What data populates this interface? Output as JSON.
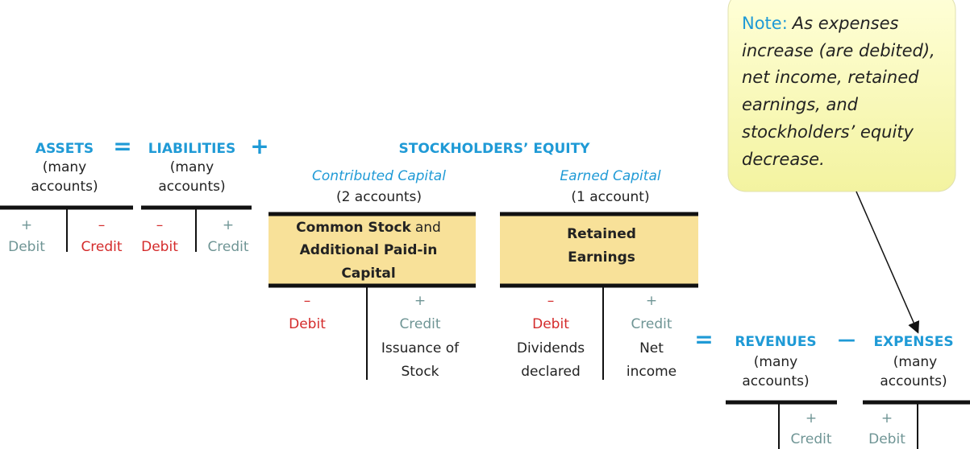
{
  "equation": {
    "assets": {
      "title": "ASSETS",
      "sub": [
        "(many",
        "accounts)"
      ]
    },
    "equals": "=",
    "liabilities": {
      "title": "LIABILITIES",
      "sub": [
        "(many",
        "accounts)"
      ]
    },
    "plus": "+",
    "equity": {
      "title": "STOCKHOLDERS’ EQUITY",
      "contributed": {
        "title": "Contributed Capital",
        "count": "(2 accounts)"
      },
      "earned": {
        "title": "Earned Capital",
        "count": "(1 account)"
      }
    }
  },
  "t_accounts": {
    "assets": {
      "left_sign": "+",
      "left": "Debit",
      "right_sign": "–",
      "right": "Credit"
    },
    "liabilities": {
      "left_sign": "–",
      "left": "Debit",
      "right_sign": "+",
      "right": "Credit"
    },
    "common_stock": {
      "name": [
        "Common Stock",
        "and",
        "Additional Paid-in",
        "Capital"
      ],
      "left_sign": "–",
      "left": "Debit",
      "right_sign": "+",
      "right": "Credit",
      "right_note": [
        "Issuance of",
        "Stock"
      ]
    },
    "retained_earnings": {
      "name": [
        "Retained",
        "Earnings"
      ],
      "left_sign": "–",
      "left": "Debit",
      "left_note": [
        "Dividends",
        "declared"
      ],
      "right_sign": "+",
      "right": "Credit",
      "right_note": [
        "Net",
        "income"
      ]
    },
    "revenues": {
      "right_sign": "+",
      "right": "Credit"
    },
    "expenses": {
      "left_sign": "+",
      "left": "Debit"
    }
  },
  "sub_equation": {
    "equals": "=",
    "revenues": {
      "title": "REVENUES",
      "sub": [
        "(many",
        "accounts)"
      ]
    },
    "minus": "—",
    "expenses": {
      "title": "EXPENSES",
      "sub": [
        "(many",
        "accounts)"
      ]
    }
  },
  "note": {
    "label": "Note:",
    "lines": [
      "As expenses",
      "increase (are debited),",
      "net income, retained",
      "earnings, and",
      "stockholders’ equity",
      "decrease."
    ]
  }
}
